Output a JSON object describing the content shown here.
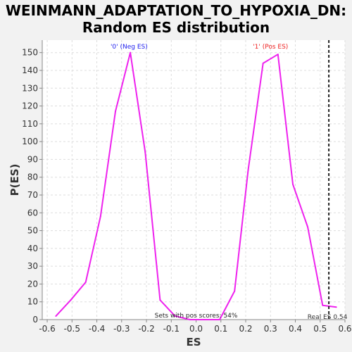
{
  "title_line1": "WEINMANN_ADAPTATION_TO_HYPOXIA_DN:",
  "title_line2": "Random ES distribution",
  "chart_data": {
    "type": "line",
    "xlabel": "ES",
    "ylabel": "P(ES)",
    "xlim": [
      -0.62,
      0.6
    ],
    "ylim": [
      0,
      157
    ],
    "x_ticks": [
      -0.6,
      -0.5,
      -0.4,
      -0.3,
      -0.2,
      -0.1,
      0.0,
      0.1,
      0.2,
      0.3,
      0.4,
      0.5,
      0.6
    ],
    "x_tick_labels": [
      "-0.6",
      "-0.5",
      "-0.4",
      "-0.3",
      "-0.2",
      "-0.1",
      "0.0",
      "0.1",
      "0.2",
      "0.3",
      "0.4",
      "0.5",
      "0.6"
    ],
    "y_ticks": [
      0,
      10,
      20,
      30,
      40,
      50,
      60,
      70,
      80,
      90,
      100,
      110,
      120,
      130,
      140,
      150
    ],
    "y_tick_labels": [
      "0",
      "10",
      "20",
      "30",
      "40",
      "50",
      "60",
      "70",
      "80",
      "90",
      "100",
      "110",
      "120",
      "130",
      "140",
      "150"
    ],
    "grid": true,
    "series": [
      {
        "color": "#ee22ee",
        "x": [
          -0.565,
          -0.505,
          -0.445,
          -0.385,
          -0.325,
          -0.265,
          -0.205,
          -0.145,
          -0.085,
          -0.025,
          0.035,
          0.095,
          0.155,
          0.21,
          0.27,
          0.33,
          0.39,
          0.45,
          0.51,
          0.565
        ],
        "y": [
          2,
          11,
          21,
          58,
          117,
          150,
          94,
          11,
          2,
          0,
          0,
          0,
          16,
          84,
          144,
          149,
          76,
          52,
          8,
          7
        ]
      }
    ],
    "real_es": 0.535,
    "real_es_label": "Real ES 0.54",
    "annotations": {
      "neg_label": "'0' (Neg ES)",
      "neg_color": "#2222ee",
      "pos_label": "'1' (Pos ES)",
      "pos_color": "#ee2222",
      "sets_label": "Sets with pos scores: 54%"
    }
  }
}
